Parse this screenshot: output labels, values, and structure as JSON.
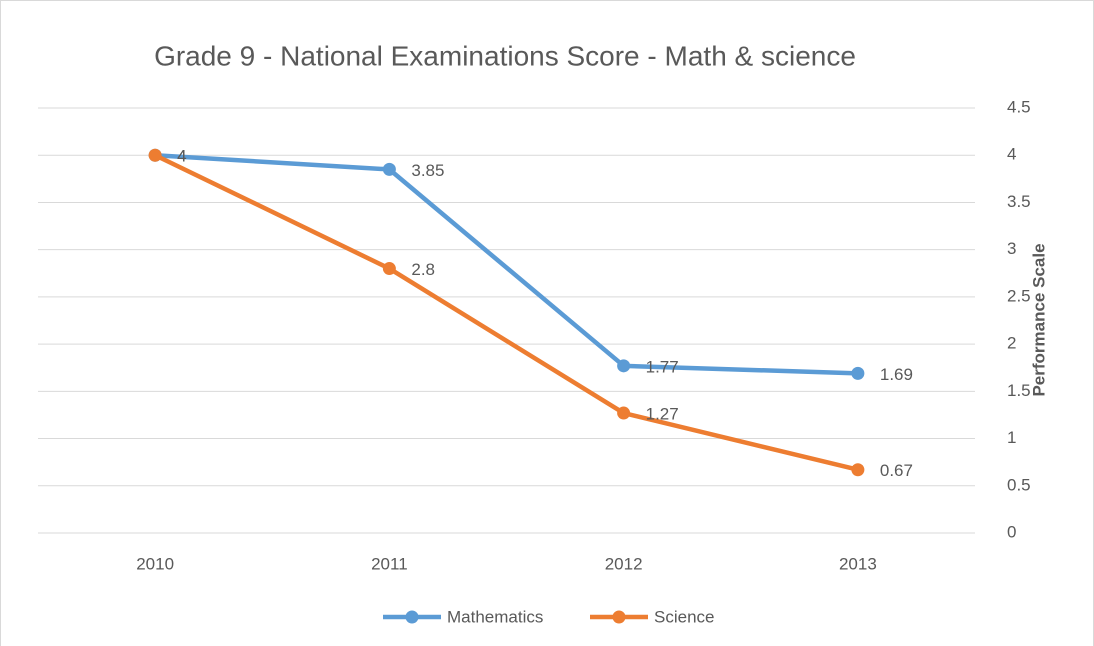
{
  "chart_data": {
    "type": "line",
    "title": "Grade 9 - National Examinations Score - Math & science",
    "y_axis_label": "Performance Scale",
    "categories": [
      "2010",
      "2011",
      "2012",
      "2013"
    ],
    "series": [
      {
        "name": "Mathematics",
        "color": "#5b9bd5",
        "values": [
          4,
          3.85,
          1.77,
          1.69
        ]
      },
      {
        "name": "Science",
        "color": "#ed7d31",
        "values": [
          4,
          2.8,
          1.27,
          0.67
        ]
      }
    ],
    "ylim": [
      0,
      4.5
    ],
    "yticks": [
      0,
      0.5,
      1,
      1.5,
      2,
      2.5,
      3,
      3.5,
      4,
      4.5
    ],
    "y_axis_side": "right",
    "grid": true,
    "legend": "bottom",
    "data_labels": true
  }
}
